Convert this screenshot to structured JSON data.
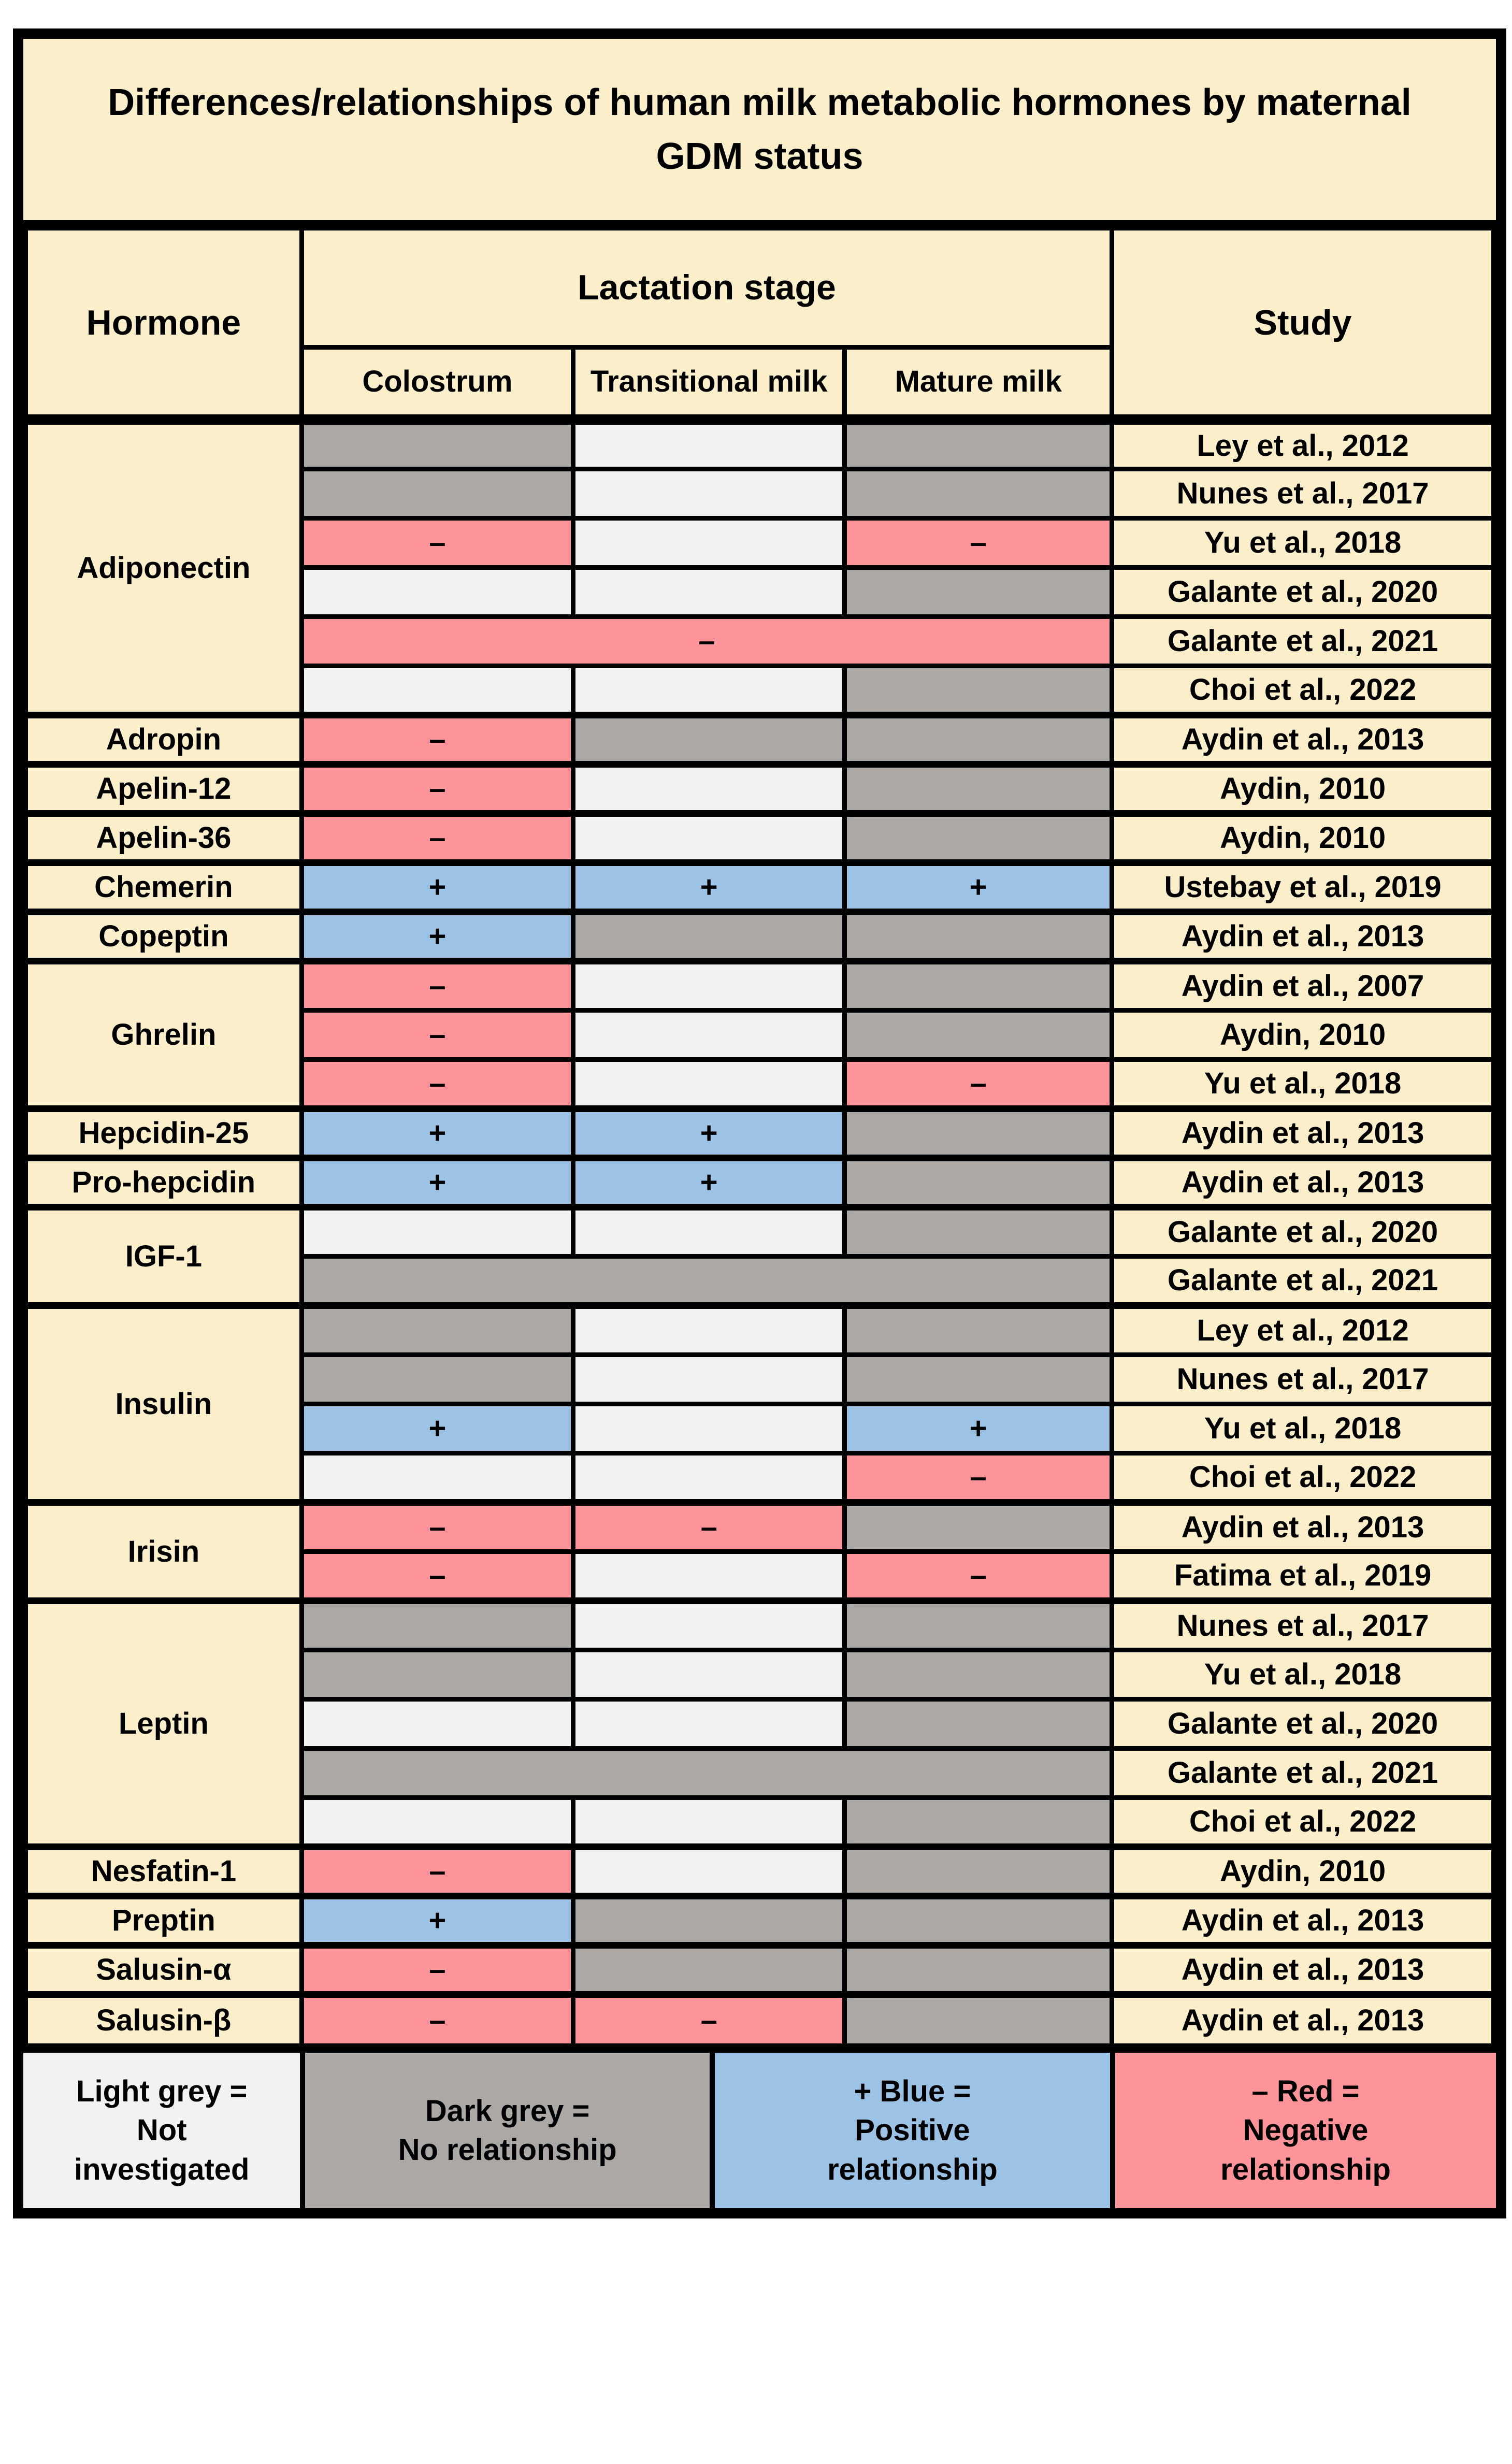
{
  "colors": {
    "page_bg": "#FFFFFF",
    "cream": "#FBEFCB",
    "light_grey": "#F2F2F2",
    "dark_grey": "#ACA8A5",
    "blue": "#9CC2E5",
    "red": "#FD9499",
    "border": "#000000",
    "text": "#000000"
  },
  "chart_data": {
    "type": "table",
    "title": "Differences/relationships of human milk metabolic hormones by maternal GDM status",
    "header": {
      "hormone": "Hormone",
      "lactation_stage": "Lactation stage",
      "colostrum": "Colostrum",
      "transitional": "Transitional milk",
      "mature": "Mature milk",
      "study": "Study"
    },
    "encoding": {
      "light": "Not investigated",
      "dark": "No relationship",
      "blue": "Positive relationship",
      "red": "Negative relationship",
      "positive_symbol": "+",
      "negative_symbol": "–"
    },
    "groups": [
      {
        "hormone": "Adiponectin",
        "rows": [
          {
            "study": "Ley et al., 2012",
            "cells": [
              {
                "state": "dark"
              },
              {
                "state": "light"
              },
              {
                "state": "dark"
              }
            ]
          },
          {
            "study": "Nunes et al., 2017",
            "cells": [
              {
                "state": "dark"
              },
              {
                "state": "light"
              },
              {
                "state": "dark"
              }
            ]
          },
          {
            "study": "Yu et al., 2018",
            "cells": [
              {
                "state": "red",
                "symbol": "–"
              },
              {
                "state": "light"
              },
              {
                "state": "red",
                "symbol": "–"
              }
            ]
          },
          {
            "study": "Galante et al., 2020",
            "cells": [
              {
                "state": "light"
              },
              {
                "state": "light"
              },
              {
                "state": "dark"
              }
            ]
          },
          {
            "study": "Galante et al., 2021",
            "cells": [
              {
                "state": "red",
                "symbol": "–",
                "span": 3
              }
            ]
          },
          {
            "study": "Choi et al., 2022",
            "cells": [
              {
                "state": "light"
              },
              {
                "state": "light"
              },
              {
                "state": "dark"
              }
            ]
          }
        ]
      },
      {
        "hormone": "Adropin",
        "rows": [
          {
            "study": "Aydin et al., 2013",
            "cells": [
              {
                "state": "red",
                "symbol": "–"
              },
              {
                "state": "dark"
              },
              {
                "state": "dark"
              }
            ]
          }
        ]
      },
      {
        "hormone": "Apelin-12",
        "rows": [
          {
            "study": "Aydin, 2010",
            "cells": [
              {
                "state": "red",
                "symbol": "–"
              },
              {
                "state": "light"
              },
              {
                "state": "dark"
              }
            ]
          }
        ]
      },
      {
        "hormone": "Apelin-36",
        "rows": [
          {
            "study": "Aydin, 2010",
            "cells": [
              {
                "state": "red",
                "symbol": "–"
              },
              {
                "state": "light"
              },
              {
                "state": "dark"
              }
            ]
          }
        ]
      },
      {
        "hormone": "Chemerin",
        "rows": [
          {
            "study": "Ustebay et al., 2019",
            "cells": [
              {
                "state": "blue",
                "symbol": "+"
              },
              {
                "state": "blue",
                "symbol": "+"
              },
              {
                "state": "blue",
                "symbol": "+"
              }
            ]
          }
        ]
      },
      {
        "hormone": "Copeptin",
        "rows": [
          {
            "study": "Aydin et al., 2013",
            "cells": [
              {
                "state": "blue",
                "symbol": "+"
              },
              {
                "state": "dark"
              },
              {
                "state": "dark"
              }
            ]
          }
        ]
      },
      {
        "hormone": "Ghrelin",
        "rows": [
          {
            "study": "Aydin et al., 2007",
            "cells": [
              {
                "state": "red",
                "symbol": "–"
              },
              {
                "state": "light"
              },
              {
                "state": "dark"
              }
            ]
          },
          {
            "study": "Aydin, 2010",
            "cells": [
              {
                "state": "red",
                "symbol": "–"
              },
              {
                "state": "light"
              },
              {
                "state": "dark"
              }
            ]
          },
          {
            "study": "Yu et al., 2018",
            "cells": [
              {
                "state": "red",
                "symbol": "–"
              },
              {
                "state": "light"
              },
              {
                "state": "red",
                "symbol": "–"
              }
            ]
          }
        ]
      },
      {
        "hormone": "Hepcidin-25",
        "rows": [
          {
            "study": "Aydin et al., 2013",
            "cells": [
              {
                "state": "blue",
                "symbol": "+"
              },
              {
                "state": "blue",
                "symbol": "+"
              },
              {
                "state": "dark"
              }
            ]
          }
        ]
      },
      {
        "hormone": "Pro-hepcidin",
        "rows": [
          {
            "study": "Aydin et al., 2013",
            "cells": [
              {
                "state": "blue",
                "symbol": "+"
              },
              {
                "state": "blue",
                "symbol": "+"
              },
              {
                "state": "dark"
              }
            ]
          }
        ]
      },
      {
        "hormone": "IGF-1",
        "rows": [
          {
            "study": "Galante et al., 2020",
            "cells": [
              {
                "state": "light"
              },
              {
                "state": "light"
              },
              {
                "state": "dark"
              }
            ]
          },
          {
            "study": "Galante et al., 2021",
            "cells": [
              {
                "state": "dark",
                "span": 3
              }
            ]
          }
        ]
      },
      {
        "hormone": "Insulin",
        "rows": [
          {
            "study": "Ley et al., 2012",
            "cells": [
              {
                "state": "dark"
              },
              {
                "state": "light"
              },
              {
                "state": "dark"
              }
            ]
          },
          {
            "study": "Nunes et al., 2017",
            "cells": [
              {
                "state": "dark"
              },
              {
                "state": "light"
              },
              {
                "state": "dark"
              }
            ]
          },
          {
            "study": "Yu et al., 2018",
            "cells": [
              {
                "state": "blue",
                "symbol": "+"
              },
              {
                "state": "light"
              },
              {
                "state": "blue",
                "symbol": "+"
              }
            ]
          },
          {
            "study": "Choi et al., 2022",
            "cells": [
              {
                "state": "light"
              },
              {
                "state": "light"
              },
              {
                "state": "red",
                "symbol": "–"
              }
            ]
          }
        ]
      },
      {
        "hormone": "Irisin",
        "rows": [
          {
            "study": "Aydin et al., 2013",
            "cells": [
              {
                "state": "red",
                "symbol": "–"
              },
              {
                "state": "red",
                "symbol": "–"
              },
              {
                "state": "dark"
              }
            ]
          },
          {
            "study": "Fatima et al., 2019",
            "cells": [
              {
                "state": "red",
                "symbol": "–"
              },
              {
                "state": "light"
              },
              {
                "state": "red",
                "symbol": "–"
              }
            ]
          }
        ]
      },
      {
        "hormone": "Leptin",
        "rows": [
          {
            "study": "Nunes et al., 2017",
            "cells": [
              {
                "state": "dark"
              },
              {
                "state": "light"
              },
              {
                "state": "dark"
              }
            ]
          },
          {
            "study": "Yu et al., 2018",
            "cells": [
              {
                "state": "dark"
              },
              {
                "state": "light"
              },
              {
                "state": "dark"
              }
            ]
          },
          {
            "study": "Galante et al., 2020",
            "cells": [
              {
                "state": "light"
              },
              {
                "state": "light"
              },
              {
                "state": "dark"
              }
            ]
          },
          {
            "study": "Galante et al., 2021",
            "cells": [
              {
                "state": "dark",
                "span": 3
              }
            ]
          },
          {
            "study": "Choi et al., 2022",
            "cells": [
              {
                "state": "light"
              },
              {
                "state": "light"
              },
              {
                "state": "dark"
              }
            ]
          }
        ]
      },
      {
        "hormone": "Nesfatin-1",
        "rows": [
          {
            "study": "Aydin, 2010",
            "cells": [
              {
                "state": "red",
                "symbol": "–"
              },
              {
                "state": "light"
              },
              {
                "state": "dark"
              }
            ]
          }
        ]
      },
      {
        "hormone": "Preptin",
        "rows": [
          {
            "study": "Aydin et al., 2013",
            "cells": [
              {
                "state": "blue",
                "symbol": "+"
              },
              {
                "state": "dark"
              },
              {
                "state": "dark"
              }
            ]
          }
        ]
      },
      {
        "hormone": "Salusin-α",
        "rows": [
          {
            "study": "Aydin et al., 2013",
            "cells": [
              {
                "state": "red",
                "symbol": "–"
              },
              {
                "state": "dark"
              },
              {
                "state": "dark"
              }
            ]
          }
        ]
      },
      {
        "hormone": "Salusin-β",
        "rows": [
          {
            "study": "Aydin et al., 2013",
            "cells": [
              {
                "state": "red",
                "symbol": "–"
              },
              {
                "state": "red",
                "symbol": "–"
              },
              {
                "state": "dark"
              }
            ]
          }
        ]
      }
    ],
    "legend": [
      {
        "key": "light",
        "label": "Light grey =\nNot\ninvestigated"
      },
      {
        "key": "dark",
        "label": "Dark grey =\nNo relationship"
      },
      {
        "key": "blue",
        "label": "+ Blue =\nPositive\nrelationship"
      },
      {
        "key": "red",
        "label": "– Red =\nNegative\nrelationship"
      }
    ]
  }
}
